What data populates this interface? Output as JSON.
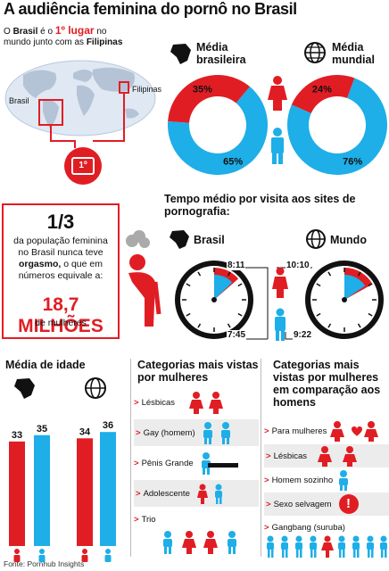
{
  "title": "A audiência feminina do pornô no Brasil",
  "intro": {
    "p1": "O ",
    "brasil": "Brasil",
    "p2": " é o ",
    "rank": "1º lugar",
    "p3": " no mundo junto com as ",
    "filipinas": "Filipinas"
  },
  "map": {
    "label_brasil": "Brasil",
    "label_filipinas": "Filipinas",
    "medal": "1º"
  },
  "colors": {
    "red": "#e11d24",
    "blue": "#1eaee8",
    "dark": "#111111",
    "gray": "#cfcfcf"
  },
  "one_third": {
    "fraction": "1/3",
    "text1": "da população feminina no Brasil nunca teve",
    "text_bold": "orgasmo,",
    "text2": " o que em números equivale a:",
    "big": "18,7 MILHÕES",
    "after": "de mulheres"
  },
  "donuts": {
    "brazil_label": "Média brasileira",
    "world_label": "Média mundial"
  },
  "time": {
    "title": "Tempo médio por visita aos sites de pornografia:",
    "brazil_label": "Brasil",
    "world_label": "Mundo",
    "brazil_women": "8:11",
    "world_women": "10:10",
    "brazil_men": "7:45",
    "world_men": "9:22"
  },
  "age": {
    "title": "Média de idade"
  },
  "cats_women": {
    "title": "Categorias mais vistas por mulheres",
    "items": [
      "Lésbicas",
      "Gay (homem)",
      "Pênis Grande",
      "Adolescente",
      "Trio"
    ]
  },
  "cats_compare": {
    "title": "Categorias mais vistas por mulheres em comparação aos homens",
    "items": [
      "Para mulheres",
      "Lésbicas",
      "Homem sozinho",
      "Sexo selvagem",
      "Gangbang (suruba)"
    ]
  },
  "source": "Fonte: Pornhub Insights",
  "chart_data": [
    {
      "type": "pie",
      "title": "Média brasileira",
      "categories": [
        "Mulheres",
        "Homens"
      ],
      "values": [
        35,
        65
      ]
    },
    {
      "type": "pie",
      "title": "Média mundial",
      "categories": [
        "Mulheres",
        "Homens"
      ],
      "values": [
        24,
        76
      ]
    },
    {
      "type": "table",
      "title": "Tempo médio por visita aos sites de pornografia:",
      "columns": [
        "Brasil",
        "Mundo"
      ],
      "rows": [
        {
          "group": "Mulheres",
          "values": [
            "8:11",
            "10:10"
          ]
        },
        {
          "group": "Homens",
          "values": [
            "7:45",
            "9:22"
          ]
        }
      ]
    },
    {
      "type": "bar",
      "title": "Média de idade",
      "categories": [
        "Brasil",
        "Mundo"
      ],
      "series": [
        {
          "values": [
            33,
            34
          ]
        },
        {
          "values": [
            35,
            36
          ]
        }
      ],
      "ylim": [
        0,
        40
      ]
    }
  ]
}
